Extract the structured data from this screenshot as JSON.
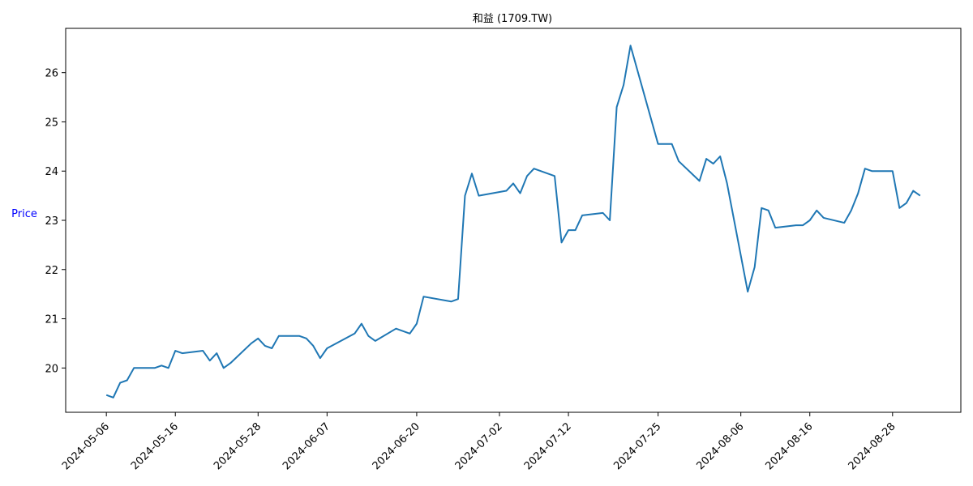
{
  "chart_data": {
    "type": "line",
    "title": "和益 (1709.TW)",
    "xlabel": "",
    "ylabel": "Price",
    "ylim": [
      19.1,
      26.9
    ],
    "y_ticks": [
      20,
      21,
      22,
      23,
      24,
      25,
      26
    ],
    "x_ticks": [
      "2024-05-06",
      "2024-05-16",
      "2024-05-28",
      "2024-06-07",
      "2024-06-20",
      "2024-07-02",
      "2024-07-12",
      "2024-07-25",
      "2024-08-06",
      "2024-08-16",
      "2024-08-28"
    ],
    "grid": false,
    "line_color": "#1f77b4",
    "series": [
      {
        "points": [
          [
            "2024-05-06",
            19.45
          ],
          [
            "2024-05-07",
            19.4
          ],
          [
            "2024-05-08",
            19.7
          ],
          [
            "2024-05-09",
            19.75
          ],
          [
            "2024-05-10",
            20.0
          ],
          [
            "2024-05-13",
            20.0
          ],
          [
            "2024-05-14",
            20.05
          ],
          [
            "2024-05-15",
            20.0
          ],
          [
            "2024-05-16",
            20.35
          ],
          [
            "2024-05-17",
            20.3
          ],
          [
            "2024-05-20",
            20.35
          ],
          [
            "2024-05-21",
            20.15
          ],
          [
            "2024-05-22",
            20.3
          ],
          [
            "2024-05-23",
            20.0
          ],
          [
            "2024-05-24",
            20.1
          ],
          [
            "2024-05-27",
            20.5
          ],
          [
            "2024-05-28",
            20.6
          ],
          [
            "2024-05-29",
            20.45
          ],
          [
            "2024-05-30",
            20.4
          ],
          [
            "2024-05-31",
            20.65
          ],
          [
            "2024-06-03",
            20.65
          ],
          [
            "2024-06-04",
            20.6
          ],
          [
            "2024-06-05",
            20.45
          ],
          [
            "2024-06-06",
            20.2
          ],
          [
            "2024-06-07",
            20.4
          ],
          [
            "2024-06-11",
            20.7
          ],
          [
            "2024-06-12",
            20.9
          ],
          [
            "2024-06-13",
            20.65
          ],
          [
            "2024-06-14",
            20.55
          ],
          [
            "2024-06-17",
            20.8
          ],
          [
            "2024-06-19",
            20.7
          ],
          [
            "2024-06-20",
            20.9
          ],
          [
            "2024-06-21",
            21.45
          ],
          [
            "2024-06-25",
            21.35
          ],
          [
            "2024-06-26",
            21.4
          ],
          [
            "2024-06-27",
            23.5
          ],
          [
            "2024-06-28",
            23.95
          ],
          [
            "2024-06-29",
            23.5
          ],
          [
            "2024-07-03",
            23.6
          ],
          [
            "2024-07-04",
            23.75
          ],
          [
            "2024-07-05",
            23.55
          ],
          [
            "2024-07-06",
            23.9
          ],
          [
            "2024-07-07",
            24.05
          ],
          [
            "2024-07-10",
            23.9
          ],
          [
            "2024-07-11",
            22.55
          ],
          [
            "2024-07-12",
            22.8
          ],
          [
            "2024-07-13",
            22.8
          ],
          [
            "2024-07-14",
            23.1
          ],
          [
            "2024-07-17",
            23.15
          ],
          [
            "2024-07-18",
            23.0
          ],
          [
            "2024-07-19",
            25.3
          ],
          [
            "2024-07-20",
            25.75
          ],
          [
            "2024-07-21",
            26.55
          ],
          [
            "2024-07-24",
            25.05
          ],
          [
            "2024-07-25",
            24.55
          ],
          [
            "2024-07-27",
            24.55
          ],
          [
            "2024-07-28",
            24.2
          ],
          [
            "2024-07-31",
            23.8
          ],
          [
            "2024-08-01",
            24.25
          ],
          [
            "2024-08-02",
            24.15
          ],
          [
            "2024-08-03",
            24.3
          ],
          [
            "2024-08-04",
            23.75
          ],
          [
            "2024-08-07",
            21.55
          ],
          [
            "2024-08-08",
            22.05
          ],
          [
            "2024-08-09",
            23.25
          ],
          [
            "2024-08-10",
            23.2
          ],
          [
            "2024-08-11",
            22.85
          ],
          [
            "2024-08-14",
            22.9
          ],
          [
            "2024-08-15",
            22.9
          ],
          [
            "2024-08-16",
            23.0
          ],
          [
            "2024-08-17",
            23.2
          ],
          [
            "2024-08-18",
            23.05
          ],
          [
            "2024-08-21",
            22.95
          ],
          [
            "2024-08-22",
            23.2
          ],
          [
            "2024-08-23",
            23.55
          ],
          [
            "2024-08-24",
            24.05
          ],
          [
            "2024-08-25",
            24.0
          ],
          [
            "2024-08-28",
            24.0
          ],
          [
            "2024-08-29",
            23.25
          ],
          [
            "2024-08-30",
            23.35
          ],
          [
            "2024-08-31",
            23.6
          ],
          [
            "2024-09-01",
            23.5
          ]
        ]
      }
    ]
  }
}
